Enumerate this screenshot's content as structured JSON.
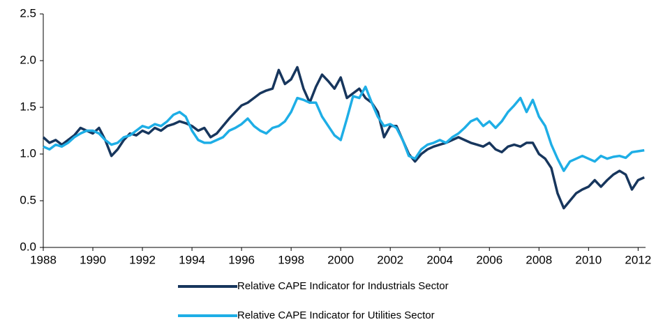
{
  "chart_data": {
    "type": "line",
    "x": [
      1988,
      1988.25,
      1988.5,
      1988.75,
      1989,
      1989.25,
      1989.5,
      1989.75,
      1990,
      1990.25,
      1990.5,
      1990.75,
      1991,
      1991.25,
      1991.5,
      1991.75,
      1992,
      1992.25,
      1992.5,
      1992.75,
      1993,
      1993.25,
      1993.5,
      1993.75,
      1994,
      1994.25,
      1994.5,
      1994.75,
      1995,
      1995.25,
      1995.5,
      1995.75,
      1996,
      1996.25,
      1996.5,
      1996.75,
      1997,
      1997.25,
      1997.5,
      1997.75,
      1998,
      1998.25,
      1998.5,
      1998.75,
      1999,
      1999.25,
      1999.5,
      1999.75,
      2000,
      2000.25,
      2000.5,
      2000.75,
      2001,
      2001.25,
      2001.5,
      2001.75,
      2002,
      2002.25,
      2002.5,
      2002.75,
      2003,
      2003.25,
      2003.5,
      2003.75,
      2004,
      2004.25,
      2004.5,
      2004.75,
      2005,
      2005.25,
      2005.5,
      2005.75,
      2006,
      2006.25,
      2006.5,
      2006.75,
      2007,
      2007.25,
      2007.5,
      2007.75,
      2008,
      2008.25,
      2008.5,
      2008.75,
      2009,
      2009.25,
      2009.5,
      2009.75,
      2010,
      2010.25,
      2010.5,
      2010.75,
      2011,
      2011.25,
      2011.5,
      2011.75,
      2012,
      2012.25
    ],
    "series": [
      {
        "name": "Relative CAPE Indicator for Industrials Sector",
        "color": "#17365d",
        "values": [
          1.18,
          1.12,
          1.15,
          1.1,
          1.15,
          1.2,
          1.28,
          1.25,
          1.22,
          1.28,
          1.15,
          0.98,
          1.05,
          1.15,
          1.22,
          1.2,
          1.25,
          1.22,
          1.28,
          1.25,
          1.3,
          1.32,
          1.35,
          1.33,
          1.3,
          1.25,
          1.28,
          1.18,
          1.22,
          1.3,
          1.38,
          1.45,
          1.52,
          1.55,
          1.6,
          1.65,
          1.68,
          1.7,
          1.9,
          1.75,
          1.8,
          1.93,
          1.7,
          1.55,
          1.72,
          1.85,
          1.78,
          1.7,
          1.82,
          1.6,
          1.65,
          1.7,
          1.6,
          1.55,
          1.45,
          1.18,
          1.3,
          1.3,
          1.15,
          1.0,
          0.92,
          1.0,
          1.05,
          1.08,
          1.1,
          1.12,
          1.15,
          1.18,
          1.15,
          1.12,
          1.1,
          1.08,
          1.12,
          1.05,
          1.02,
          1.08,
          1.1,
          1.08,
          1.12,
          1.12,
          1.0,
          0.95,
          0.85,
          0.58,
          0.42,
          0.5,
          0.58,
          0.62,
          0.65,
          0.72,
          0.65,
          0.72,
          0.78,
          0.82,
          0.78,
          0.62,
          0.72,
          0.75
        ]
      },
      {
        "name": "Relative CAPE Indicator for Utilities Sector",
        "color": "#1eaee6",
        "values": [
          1.08,
          1.05,
          1.1,
          1.08,
          1.12,
          1.18,
          1.22,
          1.25,
          1.25,
          1.22,
          1.15,
          1.1,
          1.12,
          1.18,
          1.2,
          1.25,
          1.3,
          1.28,
          1.32,
          1.3,
          1.35,
          1.42,
          1.45,
          1.4,
          1.25,
          1.15,
          1.12,
          1.12,
          1.15,
          1.18,
          1.25,
          1.28,
          1.32,
          1.38,
          1.3,
          1.25,
          1.22,
          1.28,
          1.3,
          1.35,
          1.45,
          1.6,
          1.58,
          1.55,
          1.55,
          1.4,
          1.3,
          1.2,
          1.15,
          1.38,
          1.62,
          1.6,
          1.72,
          1.55,
          1.4,
          1.3,
          1.32,
          1.28,
          1.15,
          0.98,
          0.95,
          1.05,
          1.1,
          1.12,
          1.15,
          1.12,
          1.18,
          1.22,
          1.28,
          1.35,
          1.38,
          1.3,
          1.35,
          1.28,
          1.35,
          1.45,
          1.52,
          1.6,
          1.45,
          1.58,
          1.4,
          1.3,
          1.1,
          0.95,
          0.82,
          0.92,
          0.95,
          0.98,
          0.95,
          0.92,
          0.98,
          0.95,
          0.97,
          0.98,
          0.96,
          1.02,
          1.03,
          1.04
        ]
      }
    ],
    "xlim": [
      1988,
      2012.3
    ],
    "xticks": [
      1988,
      1990,
      1992,
      1994,
      1996,
      1998,
      2000,
      2002,
      2004,
      2006,
      2008,
      2010,
      2012
    ],
    "ylim": [
      0,
      2.5
    ],
    "yticks": [
      {
        "value": 0,
        "label": "0.0"
      },
      0.5,
      {
        "value": 1,
        "label": "1.0"
      },
      1.5,
      {
        "value": 2,
        "label": "2.0"
      },
      2.5
    ],
    "grid": false,
    "legend": "bottom"
  }
}
